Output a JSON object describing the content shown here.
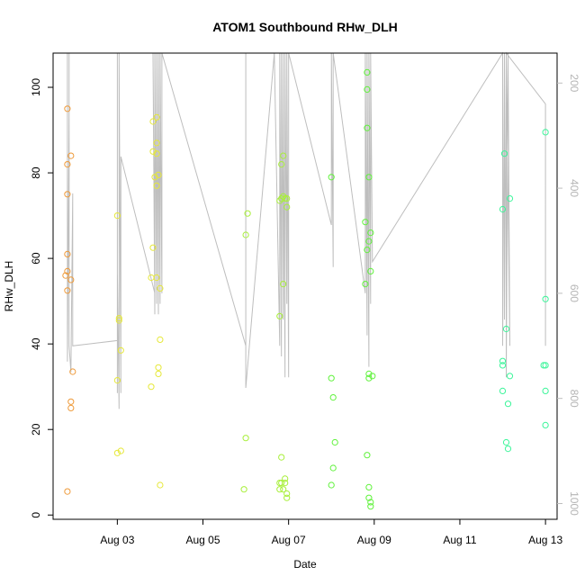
{
  "chart_data": {
    "type": "scatter",
    "title": "ATOM1 Southbound RHw_DLH",
    "xlabel": "Date",
    "ylabel": "RHw_DLH",
    "xlim": [
      "2022-08-01T12:00",
      "2022-08-13T06:30"
    ],
    "ylim": [
      -1,
      108
    ],
    "x_ticks": [
      {
        "value": "2022-08-03T00:00",
        "label": "Aug 03"
      },
      {
        "value": "2022-08-05T00:00",
        "label": "Aug 05"
      },
      {
        "value": "2022-08-07T00:00",
        "label": "Aug 07"
      },
      {
        "value": "2022-08-09T00:00",
        "label": "Aug 09"
      },
      {
        "value": "2022-08-11T00:00",
        "label": "Aug 11"
      },
      {
        "value": "2022-08-13T00:00",
        "label": "Aug 13"
      }
    ],
    "y_ticks": [
      0,
      20,
      40,
      60,
      80,
      100
    ],
    "secondary_axis": {
      "side": "right",
      "color": "#bebebe",
      "reversed": true,
      "ylim": [
        1030,
        143
      ],
      "ticks": [
        200,
        400,
        600,
        800,
        1000
      ]
    },
    "grid": false,
    "legend": "none",
    "series": [
      {
        "color": "#ee9a3a",
        "marker": "circle-open",
        "points": [
          [
            "2022-08-01T20:00",
            95
          ],
          [
            "2022-08-01T20:00",
            82
          ],
          [
            "2022-08-01T20:00",
            75
          ],
          [
            "2022-08-01T20:00",
            61
          ],
          [
            "2022-08-01T20:00",
            57
          ],
          [
            "2022-08-01T19:00",
            56
          ],
          [
            "2022-08-01T20:00",
            52.5
          ],
          [
            "2022-08-01T20:00",
            5.5
          ],
          [
            "2022-08-01T22:00",
            84
          ],
          [
            "2022-08-01T22:00",
            55
          ],
          [
            "2022-08-01T22:00",
            26.5
          ],
          [
            "2022-08-01T22:00",
            25
          ],
          [
            "2022-08-01T23:00",
            33.5
          ]
        ]
      },
      {
        "color": "#e6e83a",
        "marker": "circle-open",
        "points": [
          [
            "2022-08-03T00:00",
            70
          ],
          [
            "2022-08-03T01:00",
            46
          ],
          [
            "2022-08-03T01:00",
            45.5
          ],
          [
            "2022-08-03T02:00",
            38.5
          ],
          [
            "2022-08-03T00:00",
            31.5
          ],
          [
            "2022-08-03T00:00",
            14.5
          ],
          [
            "2022-08-03T02:00",
            15
          ],
          [
            "2022-08-03T20:00",
            92
          ],
          [
            "2022-08-03T20:00",
            85
          ],
          [
            "2022-08-03T20:00",
            62.5
          ],
          [
            "2022-08-03T19:00",
            55.5
          ],
          [
            "2022-08-03T19:00",
            30
          ],
          [
            "2022-08-03T22:00",
            93
          ],
          [
            "2022-08-03T22:00",
            87
          ],
          [
            "2022-08-03T22:00",
            84.5
          ],
          [
            "2022-08-03T21:00",
            79
          ],
          [
            "2022-08-03T23:00",
            79.5
          ],
          [
            "2022-08-03T22:00",
            77
          ],
          [
            "2022-08-03T22:00",
            55.5
          ],
          [
            "2022-08-04T00:00",
            53
          ],
          [
            "2022-08-04T00:00",
            41
          ],
          [
            "2022-08-03T23:00",
            34.5
          ],
          [
            "2022-08-03T23:00",
            33
          ],
          [
            "2022-08-04T00:00",
            7
          ]
        ]
      },
      {
        "color": "#a8ef3a",
        "marker": "circle-open",
        "points": [
          [
            "2022-08-06T01:00",
            70.5
          ],
          [
            "2022-08-06T00:00",
            65.5
          ],
          [
            "2022-08-06T00:00",
            18
          ],
          [
            "2022-08-05T23:00",
            6
          ],
          [
            "2022-08-06T19:00",
            46.5
          ],
          [
            "2022-08-06T20:00",
            82
          ],
          [
            "2022-08-06T21:00",
            84
          ],
          [
            "2022-08-06T19:00",
            73.5
          ],
          [
            "2022-08-06T20:00",
            74
          ],
          [
            "2022-08-06T21:00",
            74.5
          ],
          [
            "2022-08-06T22:00",
            74
          ],
          [
            "2022-08-06T23:00",
            74
          ],
          [
            "2022-08-06T23:00",
            72
          ],
          [
            "2022-08-06T21:00",
            54
          ],
          [
            "2022-08-06T20:00",
            13.5
          ],
          [
            "2022-08-06T19:00",
            7.5
          ],
          [
            "2022-08-06T20:00",
            7.5
          ],
          [
            "2022-08-06T19:00",
            6
          ],
          [
            "2022-08-06T22:00",
            8.5
          ],
          [
            "2022-08-06T22:00",
            7.5
          ],
          [
            "2022-08-06T21:00",
            6
          ],
          [
            "2022-08-06T23:00",
            5
          ],
          [
            "2022-08-06T23:00",
            4
          ]
        ]
      },
      {
        "color": "#60f23c",
        "marker": "circle-open",
        "points": [
          [
            "2022-08-08T00:00",
            79
          ],
          [
            "2022-08-08T00:00",
            32
          ],
          [
            "2022-08-08T01:00",
            27.5
          ],
          [
            "2022-08-08T02:00",
            17
          ],
          [
            "2022-08-08T01:00",
            11
          ],
          [
            "2022-08-08T00:00",
            7
          ],
          [
            "2022-08-08T20:00",
            103.5
          ],
          [
            "2022-08-08T20:00",
            99.5
          ],
          [
            "2022-08-08T20:00",
            90.5
          ],
          [
            "2022-08-08T21:00",
            79
          ],
          [
            "2022-08-08T19:00",
            68.5
          ],
          [
            "2022-08-08T22:00",
            66
          ],
          [
            "2022-08-08T21:00",
            64
          ],
          [
            "2022-08-08T20:00",
            62
          ],
          [
            "2022-08-08T22:00",
            57
          ],
          [
            "2022-08-08T19:00",
            54
          ],
          [
            "2022-08-08T20:00",
            14
          ],
          [
            "2022-08-08T21:00",
            33
          ],
          [
            "2022-08-08T21:00",
            32
          ],
          [
            "2022-08-08T23:00",
            32.5
          ],
          [
            "2022-08-08T21:00",
            6.5
          ],
          [
            "2022-08-08T21:00",
            4
          ],
          [
            "2022-08-08T22:00",
            3
          ],
          [
            "2022-08-08T22:00",
            2
          ]
        ]
      },
      {
        "color": "#3cf59a",
        "marker": "circle-open",
        "points": [
          [
            "2022-08-12T01:00",
            84.5
          ],
          [
            "2022-08-12T00:00",
            71.5
          ],
          [
            "2022-08-12T04:00",
            74
          ],
          [
            "2022-08-12T02:00",
            43.5
          ],
          [
            "2022-08-12T00:00",
            36
          ],
          [
            "2022-08-12T00:00",
            35
          ],
          [
            "2022-08-12T04:00",
            32.5
          ],
          [
            "2022-08-12T00:00",
            29
          ],
          [
            "2022-08-12T03:00",
            26
          ],
          [
            "2022-08-12T02:00",
            17
          ],
          [
            "2022-08-12T03:00",
            15.5
          ],
          [
            "2022-08-13T00:00",
            89.5
          ],
          [
            "2022-08-13T00:00",
            50.5
          ],
          [
            "2022-08-13T00:00",
            35
          ],
          [
            "2022-08-12T23:00",
            35
          ],
          [
            "2022-08-13T00:00",
            29
          ],
          [
            "2022-08-13T00:00",
            21
          ]
        ]
      }
    ],
    "pressure_trace": {
      "color": "#bebebe",
      "axis": "secondary",
      "points": [
        [
          "2022-08-01T20:00",
          143
        ],
        [
          "2022-08-01T20:00",
          730
        ],
        [
          "2022-08-01T21:00",
          250
        ],
        [
          "2022-08-01T21:00",
          660
        ],
        [
          "2022-08-01T21:00",
          143
        ],
        [
          "2022-08-01T21:00",
          700
        ],
        [
          "2022-08-01T22:00",
          750
        ],
        [
          "2022-08-01T23:00",
          410
        ],
        [
          "2022-08-01T23:00",
          700
        ],
        [
          "2022-08-03T00:00",
          690
        ],
        [
          "2022-08-03T00:00",
          143
        ],
        [
          "2022-08-03T00:00",
          790
        ],
        [
          "2022-08-03T00:00",
          560
        ],
        [
          "2022-08-03T01:00",
          820
        ],
        [
          "2022-08-03T01:00",
          143
        ],
        [
          "2022-08-03T02:00",
          790
        ],
        [
          "2022-08-03T02:00",
          340
        ],
        [
          "2022-08-03T21:00",
          600
        ],
        [
          "2022-08-03T20:00",
          143
        ],
        [
          "2022-08-03T21:00",
          640
        ],
        [
          "2022-08-03T21:00",
          143
        ],
        [
          "2022-08-03T22:00",
          620
        ],
        [
          "2022-08-03T22:00",
          143
        ],
        [
          "2022-08-03T23:00",
          640
        ],
        [
          "2022-08-03T23:00",
          143
        ],
        [
          "2022-08-04T00:00",
          620
        ],
        [
          "2022-08-04T00:00",
          143
        ],
        [
          "2022-08-04T01:00",
          600
        ],
        [
          "2022-08-04T01:00",
          143
        ],
        [
          "2022-08-06T00:00",
          700
        ],
        [
          "2022-08-06T00:00",
          143
        ],
        [
          "2022-08-06T00:00",
          780
        ],
        [
          "2022-08-06T16:00",
          143
        ],
        [
          "2022-08-06T19:00",
          700
        ],
        [
          "2022-08-06T19:00",
          143
        ],
        [
          "2022-08-06T20:00",
          720
        ],
        [
          "2022-08-06T20:00",
          143
        ],
        [
          "2022-08-06T21:00",
          650
        ],
        [
          "2022-08-06T21:00",
          143
        ],
        [
          "2022-08-06T22:00",
          760
        ],
        [
          "2022-08-06T22:00",
          143
        ],
        [
          "2022-08-06T23:00",
          620
        ],
        [
          "2022-08-06T23:00",
          143
        ],
        [
          "2022-08-07T00:00",
          760
        ],
        [
          "2022-08-07T00:00",
          143
        ],
        [
          "2022-08-08T00:00",
          470
        ],
        [
          "2022-08-08T00:00",
          143
        ],
        [
          "2022-08-08T01:00",
          550
        ],
        [
          "2022-08-08T01:00",
          480
        ],
        [
          "2022-08-08T01:00",
          143
        ],
        [
          "2022-08-08T19:00",
          600
        ],
        [
          "2022-08-08T19:00",
          143
        ],
        [
          "2022-08-08T20:00",
          680
        ],
        [
          "2022-08-08T20:00",
          143
        ],
        [
          "2022-08-08T21:00",
          740
        ],
        [
          "2022-08-08T21:00",
          143
        ],
        [
          "2022-08-08T22:00",
          620
        ],
        [
          "2022-08-08T22:00",
          143
        ],
        [
          "2022-08-08T23:00",
          540
        ],
        [
          "2022-08-12T00:00",
          143
        ],
        [
          "2022-08-12T00:00",
          700
        ],
        [
          "2022-08-12T01:00",
          143
        ],
        [
          "2022-08-12T01:00",
          650
        ],
        [
          "2022-08-12T02:00",
          143
        ],
        [
          "2022-08-12T02:00",
          760
        ],
        [
          "2022-08-12T03:00",
          143
        ],
        [
          "2022-08-12T04:00",
          700
        ],
        [
          "2022-08-12T02:00",
          143
        ],
        [
          "2022-08-13T00:00",
          240
        ],
        [
          "2022-08-13T00:00",
          700
        ]
      ]
    }
  }
}
